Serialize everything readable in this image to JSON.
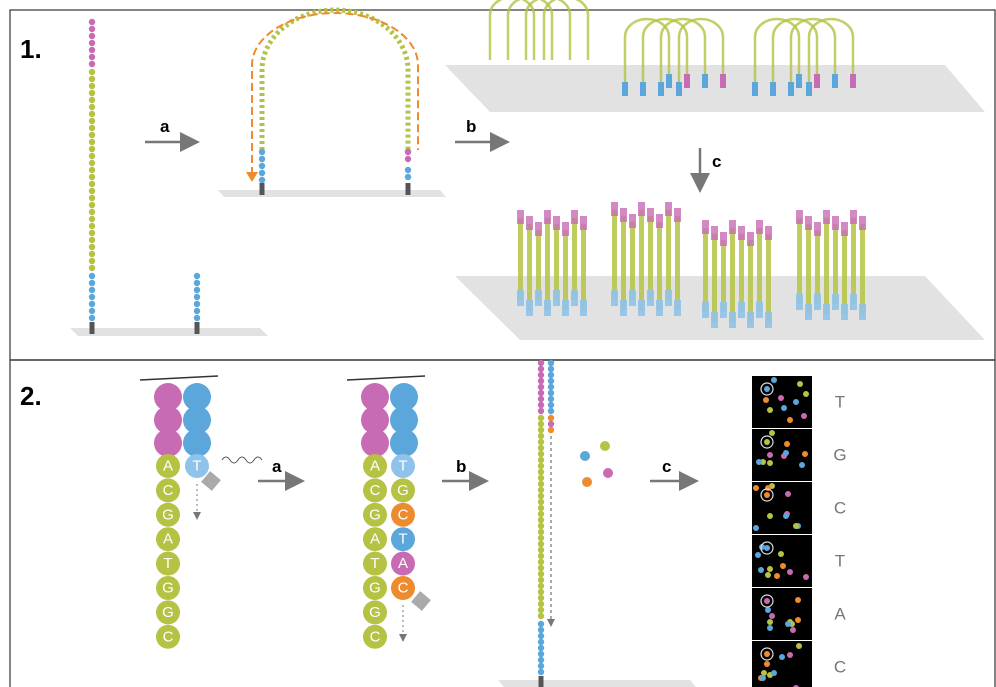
{
  "panel1": {
    "label": "1.",
    "steps": [
      "a",
      "b",
      "c"
    ]
  },
  "panel2": {
    "label": "2.",
    "steps": [
      "a",
      "b",
      "c"
    ],
    "template": [
      "A",
      "C",
      "G",
      "A",
      "T",
      "G",
      "G",
      "C"
    ],
    "primer": "T",
    "synthesized": [
      "T",
      "G",
      "C",
      "T",
      "A",
      "C"
    ],
    "readout": [
      "T",
      "G",
      "C",
      "T",
      "A",
      "C"
    ]
  }
}
